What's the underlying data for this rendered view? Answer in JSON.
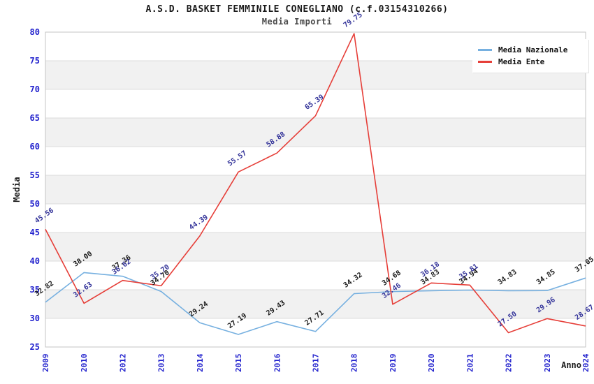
{
  "header": {
    "title": "A.S.D. BASKET FEMMINILE CONEGLIANO (c.f.03154310266)",
    "subtitle": "Media Importi"
  },
  "legend": {
    "items": [
      {
        "label": "Media Nazionale",
        "color_key": "nazionale"
      },
      {
        "label": "Media Ente",
        "color_key": "ente"
      }
    ]
  },
  "colors": {
    "nazionale": "#76b0e0",
    "ente": "#e63e38",
    "nazionale_label": "#1a1a1a",
    "ente_label": "#333399",
    "tick_label": "#2121cd",
    "axis_label": "#1a1a1a",
    "band_gray": "#f1f1f1",
    "grid_line": "#dcdcdc",
    "plot_border": "#c4c4c4"
  },
  "chart_data": {
    "type": "line",
    "title": "A.S.D. BASKET FEMMINILE CONEGLIANO (c.f.03154310266)",
    "subtitle": "Media Importi",
    "xlabel": "Anno",
    "ylabel": "Media",
    "ylim": [
      25,
      80
    ],
    "ytick_step": 5,
    "ytick_labels": [
      "25",
      "30",
      "35",
      "40",
      "45",
      "50",
      "55",
      "60",
      "65",
      "70",
      "75",
      "80"
    ],
    "grid": true,
    "band_fill": "alternating-gray-white",
    "legend_position": "top-right",
    "categories": [
      "2009",
      "2010",
      "2012",
      "2013",
      "2014",
      "2015",
      "2016",
      "2017",
      "2018",
      "2019",
      "2020",
      "2021",
      "2022",
      "2023",
      "2024"
    ],
    "series": [
      {
        "name": "Media Nazionale",
        "values": [
          32.82,
          38.0,
          37.36,
          34.7,
          29.24,
          27.19,
          29.43,
          27.71,
          34.32,
          34.68,
          34.83,
          34.94,
          34.83,
          34.85,
          37.05
        ]
      },
      {
        "name": "Media Ente",
        "values": [
          45.56,
          32.63,
          36.62,
          35.7,
          44.39,
          55.57,
          58.88,
          65.39,
          79.75,
          32.46,
          36.18,
          35.81,
          27.5,
          29.96,
          28.67
        ]
      }
    ]
  }
}
